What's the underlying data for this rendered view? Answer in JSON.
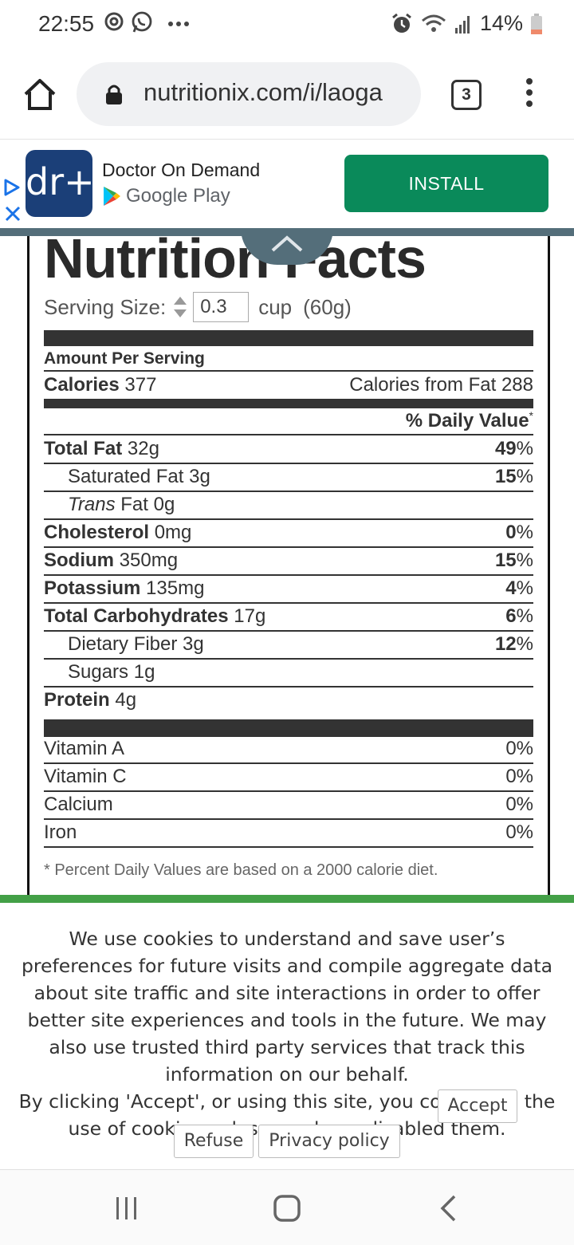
{
  "status_bar": {
    "time": "22:55",
    "battery": "14%",
    "left_icons": [
      "sync-icon",
      "whatsapp-icon",
      "more-notifications-icon"
    ],
    "right_icons": [
      "alarm-icon",
      "wifi-icon",
      "signal-icon",
      "battery-low-icon"
    ]
  },
  "browser": {
    "url": "nutritionix.com/i/laoga",
    "tab_count": "3"
  },
  "ad": {
    "app_logo": "dr+",
    "app_name": "Doctor On Demand",
    "store": "Google Play",
    "install_label": "INSTALL"
  },
  "nutrition": {
    "title": "Nutrition Facts",
    "serving_label": "Serving Size:",
    "serving_qty": "0.3",
    "serving_unit": "cup",
    "serving_weight": "(60g)",
    "amount_per_serving": "Amount Per Serving",
    "calories_label": "Calories",
    "calories_value": "377",
    "calories_fat": "Calories from Fat 288",
    "daily_value_header": "% Daily Value",
    "daily_value_star": "*",
    "rows": [
      {
        "label": "Total Fat",
        "value": "32g",
        "pct_num": "49",
        "pct_sign": "%"
      },
      {
        "label": "Saturated Fat",
        "value": "3g",
        "pct_num": "15",
        "pct_sign": "%"
      },
      {
        "label_italic": "Trans",
        "label": "Fat",
        "value": "0g",
        "pct_num": "",
        "pct_sign": ""
      },
      {
        "label": "Cholesterol",
        "value": "0mg",
        "pct_num": "0",
        "pct_sign": "%"
      },
      {
        "label": "Sodium",
        "value": "350mg",
        "pct_num": "15",
        "pct_sign": "%"
      },
      {
        "label": "Potassium",
        "value": "135mg",
        "pct_num": "4",
        "pct_sign": "%"
      },
      {
        "label": "Total Carbohydrates",
        "value": "17g",
        "pct_num": "6",
        "pct_sign": "%"
      },
      {
        "label": "Dietary Fiber",
        "value": "3g",
        "pct_num": "12",
        "pct_sign": "%"
      },
      {
        "label": "Sugars",
        "value": "1g",
        "pct_num": "",
        "pct_sign": ""
      },
      {
        "label": "Protein",
        "value": "4g",
        "pct_num": "",
        "pct_sign": ""
      }
    ],
    "vitamins": [
      {
        "label": "Vitamin A",
        "pct": "0%"
      },
      {
        "label": "Vitamin C",
        "pct": "0%"
      },
      {
        "label": "Calcium",
        "pct": "0%"
      },
      {
        "label": "Iron",
        "pct": "0%"
      }
    ],
    "footnote": "* Percent Daily Values are based on a 2000 calorie diet."
  },
  "cookie": {
    "text": "We use cookies to understand and save user’s preferences for future visits and compile aggregate data about site traffic and site interactions in order to offer better site experiences and tools in the future. We may also use trusted third party services that track this information on our behalf.",
    "text2": "By clicking 'Accept', or using this site, you consent to the use of cookies unless you have disabled them.",
    "accept_label": "Accept",
    "refuse_label": "Refuse",
    "privacy_label": "Privacy policy"
  },
  "nav_bar": {
    "icons": [
      "recent-apps-icon",
      "home-icon",
      "back-icon"
    ]
  }
}
